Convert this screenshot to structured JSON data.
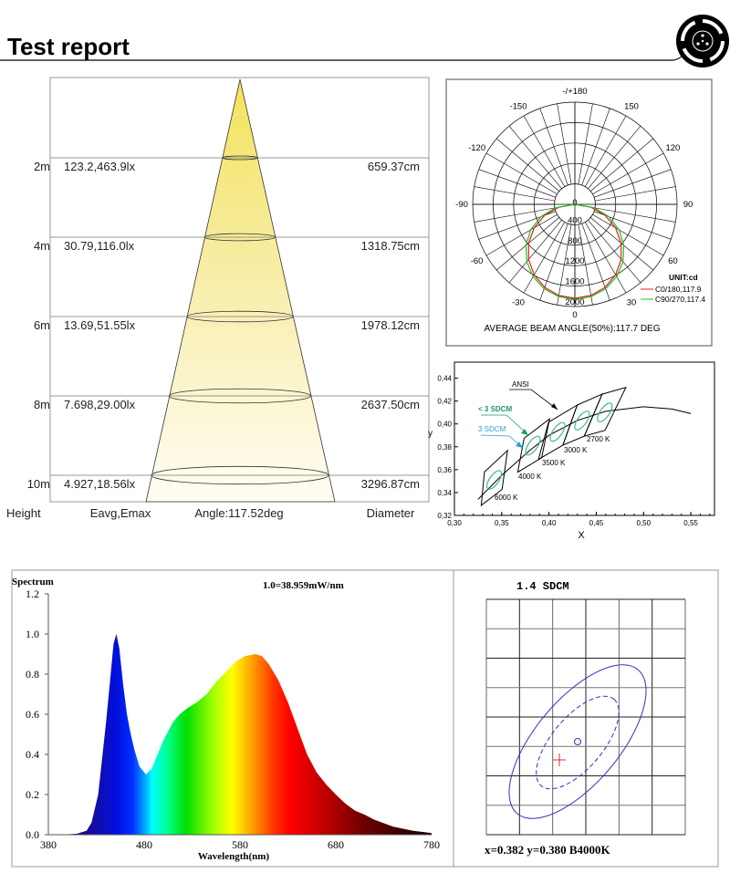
{
  "header": {
    "title": "Test report",
    "logo_icon": "film-reel-icon"
  },
  "cone": {
    "rows": [
      {
        "height": "2m",
        "eavg_emax": "123.2,463.9lx",
        "diameter": "659.37cm"
      },
      {
        "height": "4m",
        "eavg_emax": "30.79,116.0lx",
        "diameter": "1318.75cm"
      },
      {
        "height": "6m",
        "eavg_emax": "13.69,51.55lx",
        "diameter": "1978.12cm"
      },
      {
        "height": "8m",
        "eavg_emax": "7.698,29.00lx",
        "diameter": "2637.50cm"
      },
      {
        "height": "10m",
        "eavg_emax": "4.927,18.56lx",
        "diameter": "3296.87cm"
      }
    ],
    "footer": {
      "height": "Height",
      "eavg_emax": "Eavg,Emax",
      "angle": "Angle:117.52deg",
      "diameter": "Diameter"
    },
    "beam_color": "#f5e66a"
  },
  "chart_data": [
    {
      "type": "polar",
      "angle_labels": {
        "180": "-/+180",
        "150": "150",
        "-150": "-150",
        "120": "120",
        "-120": "-120",
        "90": "90",
        "-90": "-90",
        "60": "60",
        "-60": "-60",
        "30": "30",
        "-30": "-30",
        "0": "0"
      },
      "radial_labels": [
        "0",
        "400",
        "800",
        "1200",
        "1600",
        "2000"
      ],
      "rmax": 2000,
      "unit": "UNIT:cd",
      "angles": [
        -90,
        -80,
        -70,
        -60,
        -50,
        -40,
        -30,
        -20,
        -10,
        0,
        10,
        20,
        30,
        40,
        50,
        60,
        70,
        80,
        90
      ],
      "series": [
        {
          "name": "C0/180,117.9",
          "color": "#e02020",
          "values": [
            0,
            320,
            629,
            920,
            1183,
            1409,
            1593,
            1730,
            1812,
            1840,
            1812,
            1730,
            1593,
            1409,
            1183,
            920,
            629,
            320,
            0
          ]
        },
        {
          "name": "C90/270,117.4",
          "color": "#20c020",
          "values": [
            0,
            386,
            708,
            997,
            1250,
            1463,
            1634,
            1759,
            1835,
            1860,
            1835,
            1759,
            1634,
            1463,
            1250,
            997,
            708,
            386,
            0
          ]
        }
      ],
      "caption": "AVERAGE BEAM ANGLE(50%):117.7 DEG"
    },
    {
      "type": "line",
      "xlabel": "X",
      "ylabel": "y",
      "xlim": [
        0.3,
        0.575
      ],
      "ylim": [
        0.32,
        0.454
      ],
      "xticks": [
        0.3,
        0.35,
        0.4,
        0.45,
        0.5,
        0.55
      ],
      "xtick_labels": [
        "0,30",
        "0,35",
        "0,40",
        "0,45",
        "0,50",
        "0,55"
      ],
      "yticks": [
        0.32,
        0.34,
        0.36,
        0.38,
        0.4,
        0.42,
        0.44
      ],
      "ytick_labels": [
        "0,32",
        "0,34",
        "0,36",
        "0,38",
        "0,40",
        "0,42",
        "0,44"
      ],
      "locus": [
        [
          0.325,
          0.334
        ],
        [
          0.35,
          0.355
        ],
        [
          0.38,
          0.377
        ],
        [
          0.4,
          0.39
        ],
        [
          0.43,
          0.403
        ],
        [
          0.46,
          0.411
        ],
        [
          0.5,
          0.415
        ],
        [
          0.53,
          0.413
        ],
        [
          0.55,
          0.409
        ]
      ],
      "quads": [
        {
          "label": "6000 K",
          "points": [
            [
              0.3317,
              0.358
            ],
            [
              0.3562,
              0.3768
            ],
            [
              0.3504,
              0.3427
            ],
            [
              0.3284,
              0.3288
            ]
          ],
          "ellipse": [
            0.342,
            0.351
          ]
        },
        {
          "label": "4000 K",
          "points": [
            [
              0.3736,
              0.3874
            ],
            [
              0.4006,
              0.4044
            ],
            [
              0.3922,
              0.3704
            ],
            [
              0.367,
              0.3578
            ]
          ],
          "ellipse": [
            0.383,
            0.381
          ]
        },
        {
          "label": "3500 K",
          "points": [
            [
              0.3996,
              0.4015
            ],
            [
              0.4299,
              0.4165
            ],
            [
              0.4146,
              0.3814
            ],
            [
              0.3889,
              0.369
            ]
          ],
          "ellipse": [
            0.409,
            0.393
          ]
        },
        {
          "label": "3000 K",
          "points": [
            [
              0.4299,
              0.4165
            ],
            [
              0.4562,
              0.426
            ],
            [
              0.4373,
              0.3893
            ],
            [
              0.4147,
              0.3814
            ]
          ],
          "ellipse": [
            0.435,
            0.403
          ]
        },
        {
          "label": "2700 K",
          "points": [
            [
              0.4562,
              0.426
            ],
            [
              0.4813,
              0.4319
            ],
            [
              0.4593,
              0.3944
            ],
            [
              0.4373,
              0.3893
            ]
          ],
          "ellipse": [
            0.459,
            0.41
          ]
        }
      ],
      "annotations": {
        "ansi": "ANSI",
        "lt3sdcm": "< 3 SDCM",
        "sdcm3": "3 SDCM"
      },
      "colors": {
        "ellipse": "#3cb89a",
        "lt3sdcm": "#1a9a6a",
        "sdcm3": "#2aa0d8"
      }
    },
    {
      "type": "area",
      "title": "Spectrum",
      "note": "1.0=38.959mW/nm",
      "xlabel": "Wavelength(nm)",
      "xlim": [
        380,
        780
      ],
      "ylim": [
        0,
        1.2
      ],
      "xticks": [
        380,
        480,
        580,
        680,
        780
      ],
      "yticks": [
        "0.0",
        "0.2",
        "0.4",
        "0.6",
        "0.8",
        "1.0",
        "1.2"
      ],
      "x": [
        380,
        400,
        410,
        420,
        425,
        432,
        440,
        445,
        448,
        451,
        454,
        458,
        462,
        466,
        470,
        475,
        482,
        488,
        494,
        500,
        510,
        517,
        525,
        535,
        545,
        555,
        565,
        575,
        585,
        596,
        603,
        610,
        620,
        630,
        640,
        650,
        660,
        670,
        680,
        690,
        700,
        710,
        720,
        740,
        760,
        780
      ],
      "y": [
        0,
        0.002,
        0.005,
        0.02,
        0.06,
        0.2,
        0.55,
        0.8,
        0.95,
        1.0,
        0.93,
        0.75,
        0.6,
        0.5,
        0.42,
        0.34,
        0.3,
        0.33,
        0.4,
        0.47,
        0.56,
        0.6,
        0.63,
        0.66,
        0.7,
        0.76,
        0.81,
        0.86,
        0.89,
        0.9,
        0.89,
        0.85,
        0.77,
        0.66,
        0.53,
        0.4,
        0.31,
        0.25,
        0.2,
        0.155,
        0.12,
        0.1,
        0.075,
        0.04,
        0.02,
        0.008
      ]
    },
    {
      "type": "scatter",
      "title": "1.4 SDCM",
      "result": "x=0.382 y=0.380 B4000K",
      "colors": {
        "ellipse": "#3030c0",
        "cross": "#e03030"
      }
    }
  ]
}
